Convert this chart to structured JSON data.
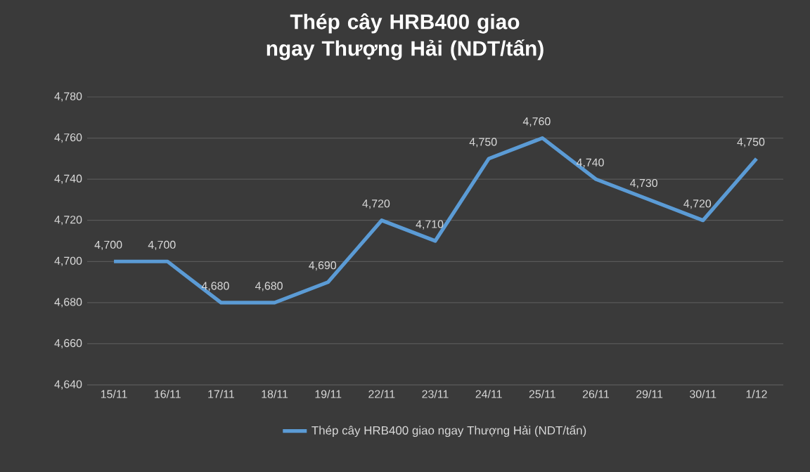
{
  "chart_data": {
    "type": "line",
    "title": "Thép cây HRB400 giao ngay Thượng Hải (NDT/tấn)",
    "categories": [
      "15/11",
      "16/11",
      "17/11",
      "18/11",
      "19/11",
      "22/11",
      "23/11",
      "24/11",
      "25/11",
      "26/11",
      "29/11",
      "30/11",
      "1/12"
    ],
    "series": [
      {
        "name": "Thép cây HRB400 giao ngay Thượng Hải (NDT/tấn)",
        "color": "#5b9bd5",
        "values": [
          4700,
          4700,
          4680,
          4680,
          4690,
          4720,
          4710,
          4750,
          4760,
          4740,
          4730,
          4720,
          4750
        ],
        "value_labels": [
          "4,700",
          "4,700",
          "4,680",
          "4,680",
          "4,690",
          "4,720",
          "4,710",
          "4,750",
          "4,760",
          "4,740",
          "4,730",
          "4,720",
          "4,750"
        ]
      }
    ],
    "ylim": [
      4640,
      4780
    ],
    "yticks": [
      {
        "value": 4640,
        "label": "4,640"
      },
      {
        "value": 4660,
        "label": "4,660"
      },
      {
        "value": 4680,
        "label": "4,680"
      },
      {
        "value": 4700,
        "label": "4,700"
      },
      {
        "value": 4720,
        "label": "4,720"
      },
      {
        "value": 4740,
        "label": "4,740"
      },
      {
        "value": 4760,
        "label": "4,760"
      },
      {
        "value": 4780,
        "label": "4,780"
      }
    ],
    "grid": "y",
    "legend": "bottom"
  }
}
